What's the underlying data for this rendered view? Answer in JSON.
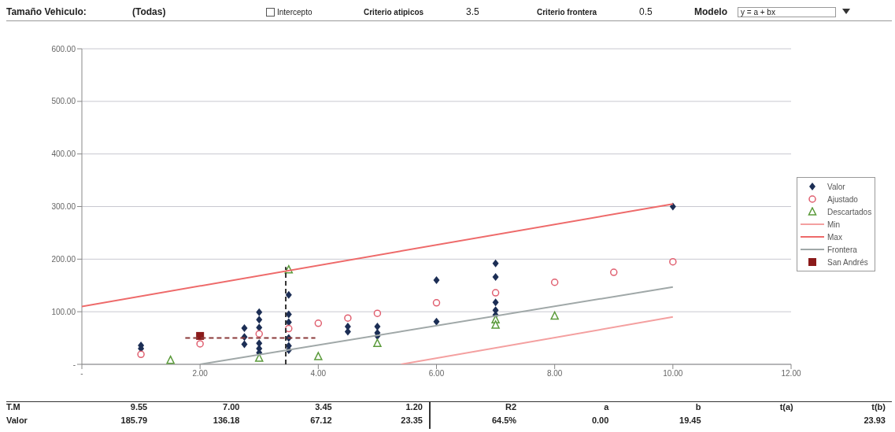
{
  "chart_data": {
    "type": "scatter",
    "annotations": [
      "Tamaño Vehiculo:",
      "(Todas)",
      "Intercepto",
      "Criterio atipicos",
      "3.5",
      "Criterio frontera",
      "0.5",
      "Modelo",
      "y = a + bx",
      "T.M",
      "9.55",
      "7.00",
      "3.45",
      "1.20",
      "R2",
      "a",
      "b",
      "t(a)",
      "t(b)",
      "Valor",
      "185.79",
      "136.18",
      "67.12",
      "23.35",
      "64.5%",
      "0.00",
      "19.45",
      "23.93"
    ],
    "xlim": [
      0,
      12
    ],
    "xticks": [
      {
        "value": 0,
        "label": "-"
      },
      {
        "value": 2,
        "label": "2.00"
      },
      {
        "value": 4,
        "label": "4.00"
      },
      {
        "value": 6,
        "label": "6.00"
      },
      {
        "value": 8,
        "label": "8.00"
      },
      {
        "value": 10,
        "label": "10.00"
      },
      {
        "value": 12,
        "label": "12.00"
      }
    ],
    "ylim": [
      0,
      600
    ],
    "yticks": [
      {
        "value": 0,
        "label": "-"
      },
      {
        "value": 100,
        "label": "100.00"
      },
      {
        "value": 200,
        "label": "200.00"
      },
      {
        "value": 300,
        "label": "300.00"
      },
      {
        "value": 400,
        "label": "400.00"
      },
      {
        "value": 500,
        "label": "500.00"
      },
      {
        "value": 600,
        "label": "600.00"
      }
    ],
    "grid": "y",
    "legend": "right",
    "series": [
      {
        "name": "Valor",
        "marker": "diamond",
        "color": "#1c2e55",
        "x": [
          1,
          1,
          2.75,
          2.75,
          2.75,
          3,
          3,
          3,
          3,
          3,
          3,
          3.5,
          3.5,
          3.5,
          3.5,
          3.5,
          3.5,
          4.5,
          4.5,
          5,
          5,
          5,
          6,
          6,
          7,
          7,
          7,
          7,
          7,
          10
        ],
        "values": [
          36,
          30,
          69,
          52,
          38,
          99,
          85,
          70,
          40,
          30,
          22,
          132,
          95,
          80,
          50,
          35,
          27,
          72,
          62,
          72,
          60,
          54,
          160,
          81,
          192,
          166,
          118,
          103,
          94,
          300
        ]
      },
      {
        "name": "Ajustado",
        "marker": "circle",
        "color": "#e06070",
        "x": [
          1,
          2,
          3,
          3.5,
          4,
          4.5,
          5,
          6,
          7,
          8,
          9,
          10
        ],
        "values": [
          19,
          39,
          58,
          68,
          78,
          88,
          97,
          117,
          136,
          156,
          175,
          195
        ]
      },
      {
        "name": "Descartados",
        "marker": "triangle",
        "color": "#5a9a3a",
        "x": [
          1.5,
          3,
          3.5,
          4,
          5,
          7,
          7,
          8
        ],
        "values": [
          8,
          12,
          180,
          15,
          40,
          85,
          75,
          92
        ]
      },
      {
        "name": "Min",
        "type": "line",
        "marker": "none",
        "line_style": "solid",
        "color": "#f4a0a0",
        "x": [
          5.4,
          10
        ],
        "values": [
          0,
          90
        ]
      },
      {
        "name": "Max",
        "type": "line",
        "marker": "none",
        "line_style": "solid",
        "color": "#ee6a6a",
        "x": [
          0,
          10
        ],
        "values": [
          110,
          305
        ]
      },
      {
        "name": "Frontera",
        "type": "line",
        "marker": "none",
        "line_style": "solid",
        "color": "#a0a8a8",
        "x": [
          2,
          10
        ],
        "values": [
          0,
          147
        ]
      },
      {
        "name": "San Andrés",
        "marker": "square",
        "color": "#8b1a1a",
        "x": [
          2
        ],
        "values": [
          54
        ]
      },
      {
        "type": "line",
        "marker": "none",
        "line_style": "dashed",
        "color": "#8b3a3a",
        "x": [
          1.75,
          3.95
        ],
        "values": [
          50,
          50
        ]
      },
      {
        "type": "line",
        "marker": "none",
        "line_style": "dashed",
        "color": "#333333",
        "x": [
          3.45,
          3.45
        ],
        "values": [
          0,
          185
        ]
      }
    ]
  }
}
